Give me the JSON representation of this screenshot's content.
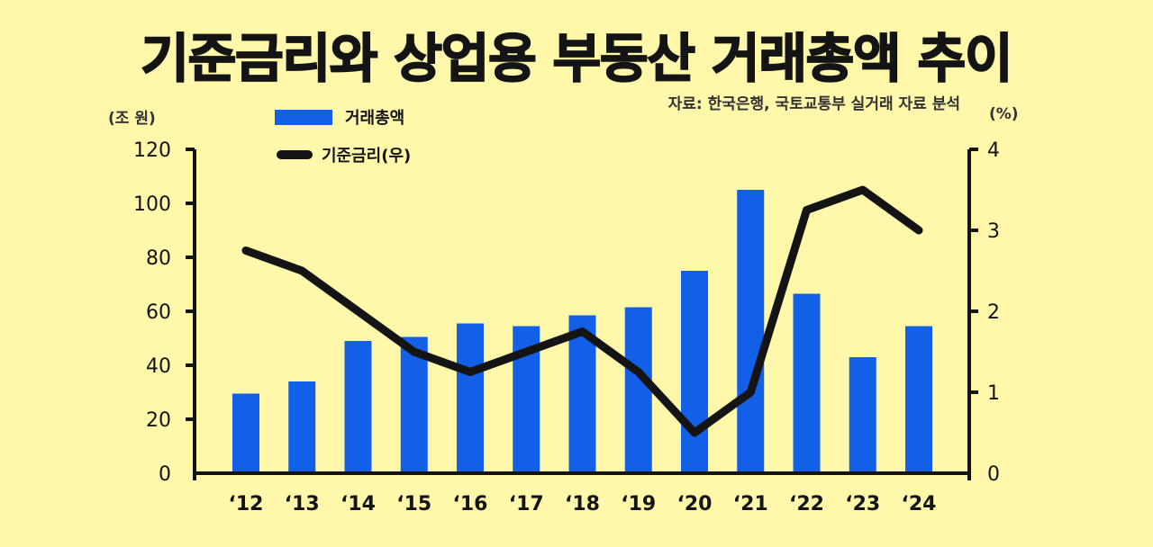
{
  "header": {
    "title": "기준금리와 상업용 부동산 거래총액 추이",
    "source": "자료: 한국은행, 국토교통부 실거래 자료 분석"
  },
  "axes": {
    "left_unit": "(조 원)",
    "right_unit": "(%)",
    "left_ticks": [
      "0",
      "20",
      "40",
      "60",
      "80",
      "100",
      "120"
    ],
    "right_ticks": [
      "0",
      "1",
      "2",
      "3",
      "4"
    ]
  },
  "legend": {
    "bar_label": "거래총액",
    "line_label": "기준금리(우)"
  },
  "colors": {
    "background": "#FFF8AA",
    "bar": "#125FE8",
    "line": "#141414",
    "axis": "#141414"
  },
  "chart_data": {
    "type": "bar+line",
    "title": "기준금리와 상업용 부동산 거래총액 추이",
    "source": "자료: 한국은행, 국토교통부 실거래 자료 분석",
    "categories": [
      "'12",
      "'13",
      "'14",
      "'15",
      "'16",
      "'17",
      "'18",
      "'19",
      "'20",
      "'21",
      "'22",
      "'23",
      "'24"
    ],
    "series": [
      {
        "name": "거래총액",
        "type": "bar",
        "axis": "left",
        "unit": "조 원",
        "values": [
          29.5,
          34,
          49,
          50.5,
          55.5,
          54.5,
          58.5,
          61.5,
          75,
          105,
          66.5,
          43,
          54.5
        ]
      },
      {
        "name": "기준금리(우)",
        "type": "line",
        "axis": "right",
        "unit": "%",
        "values": [
          2.75,
          2.5,
          2.0,
          1.5,
          1.25,
          1.5,
          1.75,
          1.25,
          0.5,
          1.0,
          3.25,
          3.5,
          3.0
        ]
      }
    ],
    "xlabel": "",
    "ylabel_left": "(조 원)",
    "ylabel_right": "(%)",
    "ylim_left": [
      0,
      120
    ],
    "ylim_right": [
      0,
      4
    ],
    "grid": false,
    "legend_position": "top-left"
  }
}
